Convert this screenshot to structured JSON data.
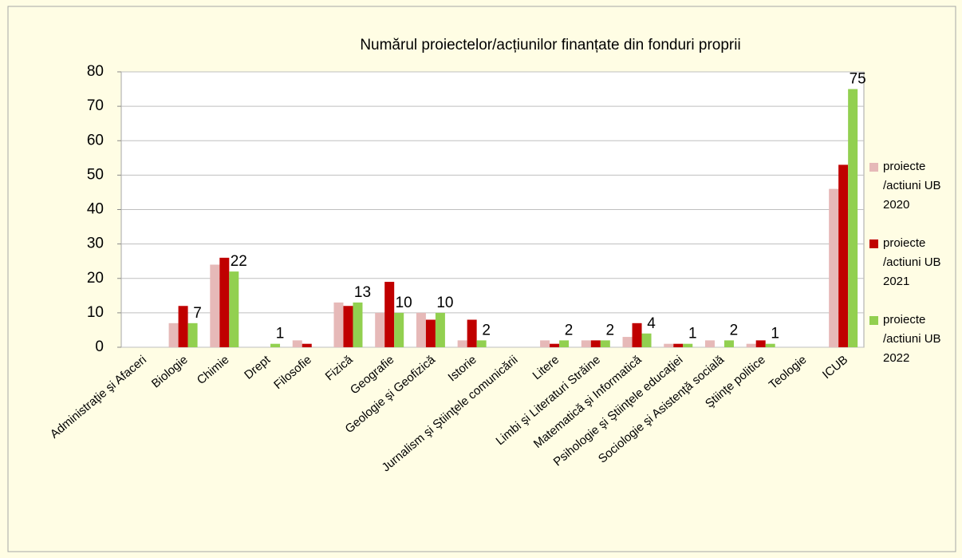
{
  "chart_data": {
    "type": "bar",
    "title": "Numărul proiectelor/acțiunilor finanțate din fonduri  proprii",
    "categories": [
      "Administraţie şi Afaceri",
      "Biologie",
      "Chimie",
      "Drept",
      "Filosofie",
      "Fizică",
      "Geografie",
      "Geologie şi Geofizică",
      "Istorie",
      "Jurnalism şi Ştiinţele comunicării",
      "Litere",
      "Limbi şi Literaturi Străine",
      "Matematică şi Informatică",
      "Psihologie şi Ştiinţele educaţiei",
      "Sociologie şi Asistenţă socială",
      "Ştiinţe politice",
      "Teologie",
      "ICUB"
    ],
    "series": [
      {
        "name": "proiecte /actiuni UB 2020",
        "color": "#e6b9b8",
        "values": [
          0,
          7,
          24,
          0,
          2,
          13,
          10,
          10,
          2,
          0,
          2,
          2,
          3,
          1,
          2,
          1,
          0,
          46
        ]
      },
      {
        "name": "proiecte /actiuni UB 2021",
        "color": "#c00000",
        "values": [
          0,
          12,
          26,
          0,
          1,
          12,
          19,
          8,
          8,
          0,
          1,
          2,
          7,
          1,
          0,
          2,
          0,
          53
        ]
      },
      {
        "name": "proiecte /actiuni UB 2022",
        "color": "#92d050",
        "values": [
          0,
          7,
          22,
          1,
          0,
          13,
          10,
          10,
          2,
          0,
          2,
          2,
          4,
          1,
          2,
          1,
          0,
          75
        ],
        "data_labels": true
      }
    ],
    "ylim": [
      0,
      80
    ],
    "yticks": [
      0,
      10,
      20,
      30,
      40,
      50,
      60,
      70,
      80
    ],
    "grid": true,
    "legend": "right"
  }
}
